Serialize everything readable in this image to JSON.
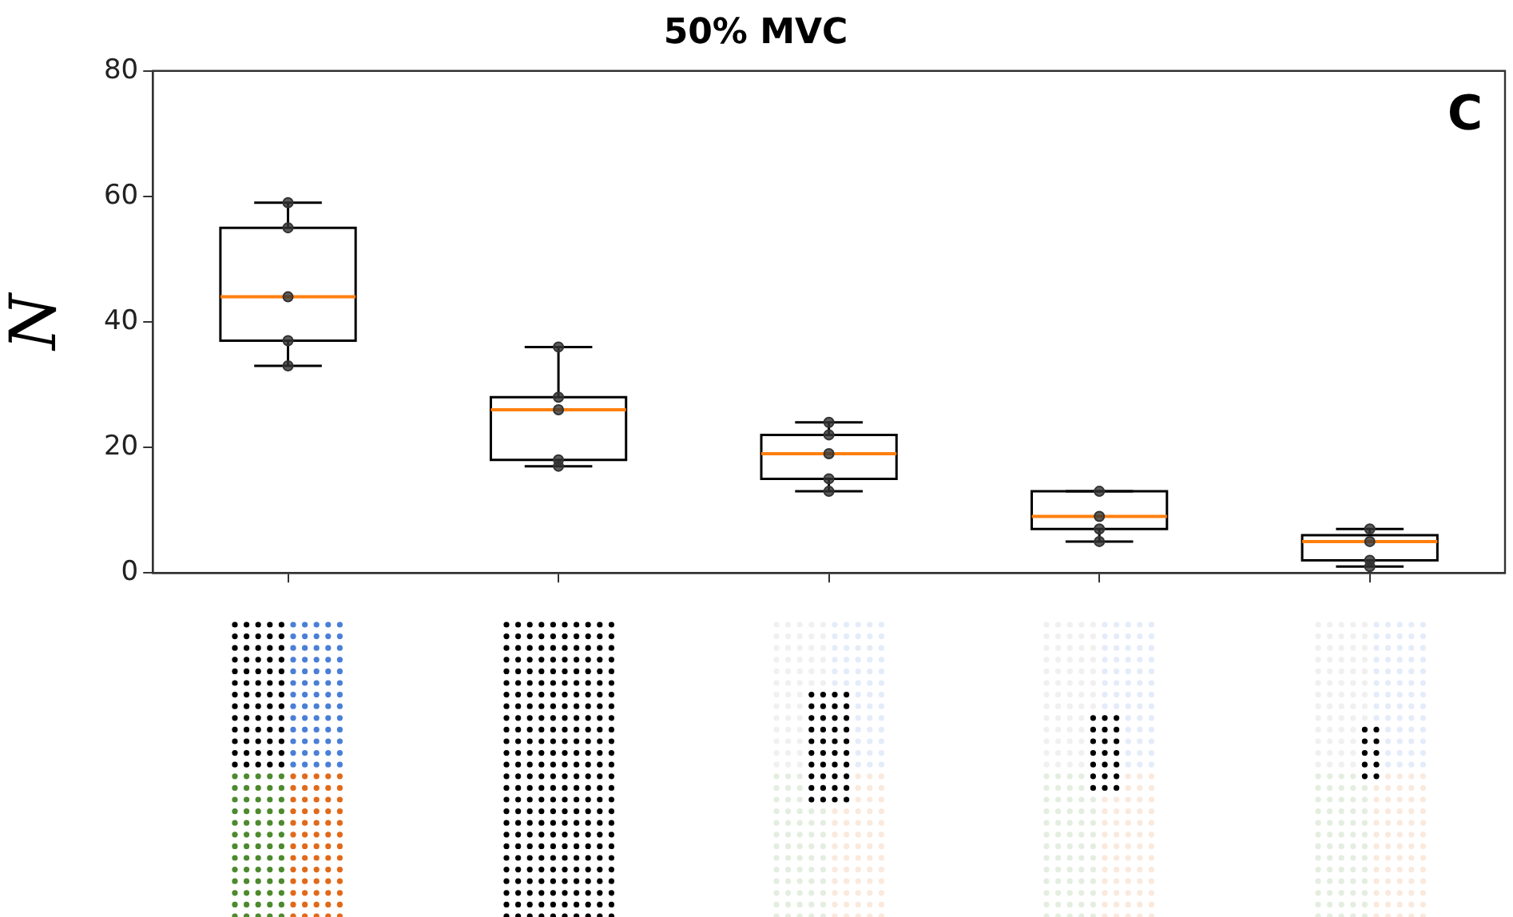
{
  "chart_data": {
    "type": "box",
    "title": "50% MVC",
    "ylabel": "N",
    "annotations": [
      "C"
    ],
    "categories": [
      null,
      null,
      null,
      null,
      null
    ],
    "ylim": [
      0,
      80
    ],
    "yticks": [
      0,
      20,
      40,
      60,
      80
    ],
    "grid": false,
    "boxes": [
      {
        "low": 33,
        "q1": 37,
        "median": 44,
        "q3": 55,
        "high": 59
      },
      {
        "low": 17,
        "q1": 18,
        "median": 26,
        "q3": 28,
        "high": 36
      },
      {
        "low": 13,
        "q1": 15,
        "median": 19,
        "q3": 22,
        "high": 24
      },
      {
        "low": 5,
        "q1": 7,
        "median": 9,
        "q3": 13,
        "high": 13
      },
      {
        "low": 1,
        "q1": 2,
        "median": 5,
        "q3": 6,
        "high": 7
      }
    ],
    "series": [
      {
        "type": "scatter",
        "color": "#333333",
        "values": [
          59,
          36,
          24,
          13,
          7
        ]
      },
      {
        "type": "scatter",
        "color": "#333333",
        "values": [
          55,
          28,
          22,
          9,
          5
        ]
      },
      {
        "type": "scatter",
        "color": "#333333",
        "values": [
          44,
          26,
          19,
          7,
          2
        ]
      },
      {
        "type": "scatter",
        "color": "#333333",
        "values": [
          37,
          18,
          15,
          5,
          1
        ]
      },
      {
        "type": "scatter",
        "color": "#333333",
        "values": [
          33,
          17,
          13,
          null,
          null
        ]
      }
    ],
    "marker": "circle"
  }
}
